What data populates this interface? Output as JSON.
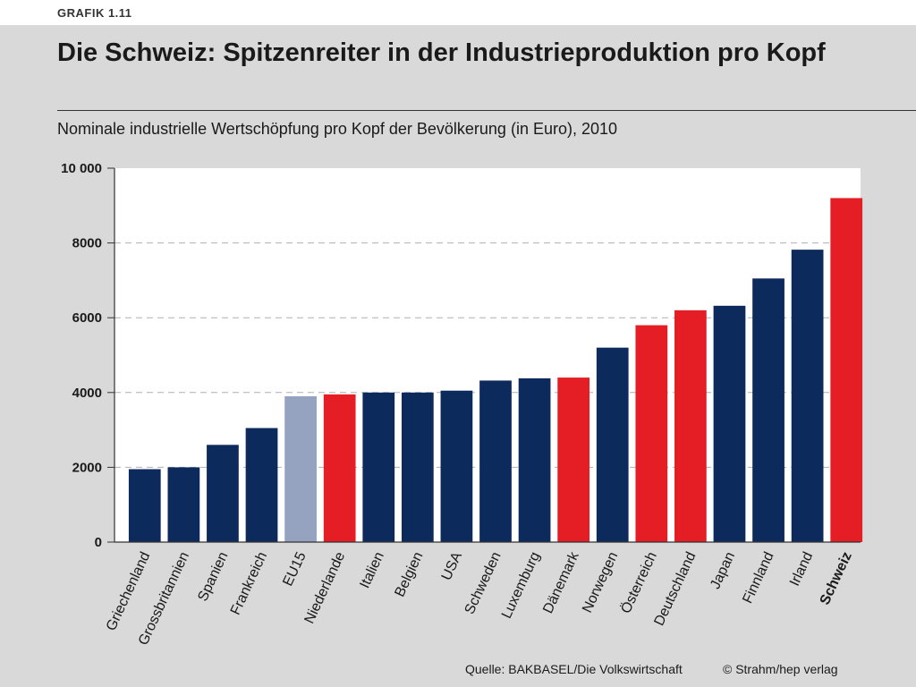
{
  "header": {
    "figure_label": "GRAFIK 1.11",
    "title": "Die Schweiz: Spitzenreiter in der Industrieproduktion pro Kopf",
    "subtitle": "Nominale industrielle Wertschöpfung pro Kopf der Bevölkerung (in Euro), 2010"
  },
  "footer": {
    "source": "Quelle: BAKBASEL/Die Volkswirtschaft",
    "copyright": "© Strahm/hep verlag"
  },
  "colors": {
    "default": "#0d2a5c",
    "highlight": "#e51e25",
    "reference": "#95a3c1"
  },
  "chart_data": {
    "type": "bar",
    "title": "Die Schweiz: Spitzenreiter in der Industrieproduktion pro Kopf",
    "subtitle": "Nominale industrielle Wertschöpfung pro Kopf der Bevölkerung (in Euro), 2010",
    "xlabel": "",
    "ylabel": "",
    "ylim": [
      0,
      10000
    ],
    "yticks": [
      0,
      2000,
      4000,
      6000,
      8000,
      10000
    ],
    "ytick_labels": [
      "0",
      "2000",
      "4000",
      "6000",
      "8000",
      "10 000"
    ],
    "grid": true,
    "categories": [
      "Griechenland",
      "Grossbritannien",
      "Spanien",
      "Frankreich",
      "EU15",
      "Niederlande",
      "Italien",
      "Belgien",
      "USA",
      "Schweden",
      "Luxemburg",
      "Dänemark",
      "Norwegen",
      "Österreich",
      "Deutschland",
      "Japan",
      "Finnland",
      "Irland",
      "Schweiz"
    ],
    "values": [
      1950,
      2000,
      2600,
      3050,
      3900,
      3950,
      4000,
      4000,
      4050,
      4320,
      4380,
      4400,
      5200,
      5800,
      6200,
      6320,
      7050,
      7820,
      9200
    ],
    "bar_groups": [
      "default",
      "default",
      "default",
      "default",
      "reference",
      "highlight",
      "default",
      "default",
      "default",
      "default",
      "default",
      "highlight",
      "default",
      "highlight",
      "highlight",
      "default",
      "default",
      "default",
      "highlight"
    ],
    "bold_category": "Schweiz"
  }
}
